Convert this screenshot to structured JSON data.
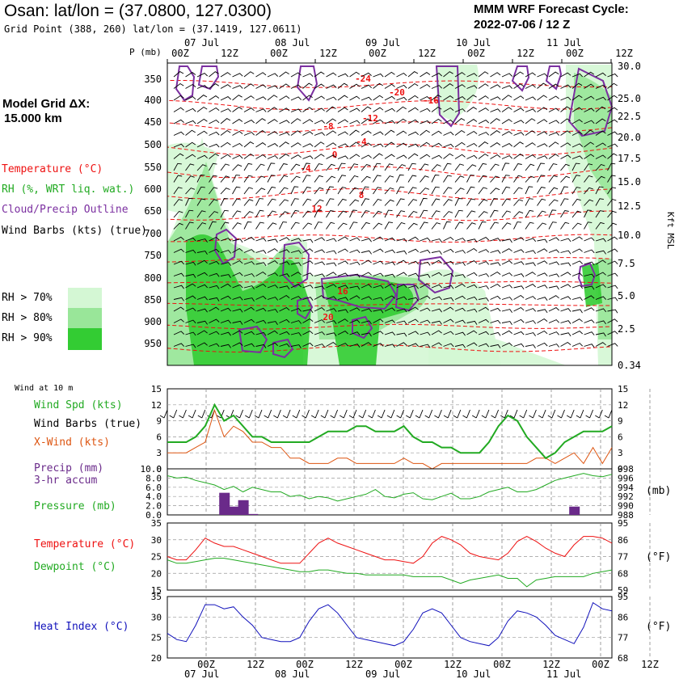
{
  "header": {
    "title": "Osan:  lat/lon = (37.0800, 127.0300)",
    "subtitle": "Grid Point (388, 260) lat/lon = (37.1419, 127.0611)",
    "cycle_line1": "MMM WRF Forecast Cycle:",
    "cycle_line2": "2022-07-06 / 12  Z",
    "model_grid_line1": "Model Grid ΔX:",
    "model_grid_line2": "15.000 km"
  },
  "legend": {
    "temperature": "Temperature (°C)",
    "rh": "RH (%, WRT liq. wat.)",
    "cloud": "Cloud/Precip Outline",
    "wind": "Wind Barbs (kts) (true)",
    "rh70": "RH > 70%",
    "rh80": "RH > 80%",
    "rh90": "RH > 90%"
  },
  "colors": {
    "temperature": "#ee1111",
    "rh70": "#d4f7d4",
    "rh80": "#99e699",
    "rh90": "#33cc33",
    "cloud": "#7b2fa0",
    "pressure": "#22aa22",
    "heat_index": "#1111bb",
    "xwind": "#dd5511",
    "precip": "#6a2a8a"
  },
  "time_axis": {
    "top_dates": [
      "07 Jul",
      "08 Jul",
      "09 Jul",
      "10 Jul",
      "11 Jul"
    ],
    "top_hours": [
      "00Z",
      "12Z",
      "00Z",
      "12Z",
      "00Z",
      "12Z",
      "00Z",
      "12Z",
      "00Z",
      "12Z"
    ],
    "bottom_hours": [
      "00Z",
      "12Z",
      "00Z",
      "12Z",
      "00Z",
      "12Z",
      "00Z",
      "12Z",
      "00Z",
      "12Z"
    ],
    "bottom_dates": [
      "07 Jul",
      "08 Jul",
      "09 Jul",
      "10 Jul",
      "11 Jul"
    ]
  },
  "panels": {
    "wind10m_title": "Wind at 10 m",
    "wind_spd_label": "Wind Spd (kts)",
    "wind_barbs_label": "Wind Barbs (true)",
    "xwind_label": "X-Wind (kts)",
    "precip_label_1": "Precip (mm)",
    "precip_label_2": "3-hr accum",
    "pressure_label": "Pressure (mb)",
    "pressure_unit": "(mb)",
    "temp_label": "Temperature (°C)",
    "dewpoint_label": "Dewpoint (°C)",
    "temp_unit_f": "(°F)",
    "heat_index_label": "Heat Index (°C)",
    "heat_unit_f": "(°F)"
  },
  "chart_data": [
    {
      "type": "heatmap",
      "name": "cross-section",
      "y_label": "P (mb)",
      "y_ticks": [
        "350",
        "400",
        "450",
        "500",
        "550",
        "600",
        "650",
        "700",
        "750",
        "800",
        "850",
        "900",
        "950"
      ],
      "right_label": "Kft MSL",
      "right_ticks": [
        "30.0",
        "25.0",
        "22.5",
        "20.0",
        "17.5",
        "15.0",
        "12.5",
        "10.0",
        "7.5",
        "5.0",
        "2.5",
        "0.34"
      ],
      "temperature_contour_labels": [
        "-24",
        "-20",
        "-16",
        "-12",
        "-8",
        "-4",
        "-4",
        "0",
        "4",
        "8",
        "12",
        "16",
        "20"
      ]
    },
    {
      "type": "line",
      "name": "wind10m",
      "y_ticks_left": [
        "15",
        "12",
        "9",
        "6",
        "3",
        "0"
      ],
      "y_ticks_right": [
        "15",
        "12",
        "9",
        "6",
        "3",
        "0"
      ],
      "ylim": [
        0,
        15
      ],
      "series": [
        {
          "name": "Wind Spd (kts)",
          "values": [
            5,
            5,
            5,
            6,
            8,
            12,
            9,
            10,
            8,
            6,
            6,
            5,
            5,
            5,
            5,
            5,
            6,
            7,
            7,
            7,
            8,
            8,
            7,
            7,
            7,
            8,
            6,
            5,
            5,
            4,
            4,
            3,
            3,
            3,
            5,
            8,
            10,
            9,
            6,
            4,
            2,
            3,
            5,
            6,
            7,
            7,
            7,
            8
          ]
        },
        {
          "name": "X-Wind (kts)",
          "values": [
            3,
            3,
            3,
            4,
            5,
            11,
            6,
            8,
            7,
            5,
            5,
            4,
            4,
            2,
            2,
            1,
            1,
            1,
            2,
            2,
            1,
            1,
            1,
            1,
            1,
            2,
            1,
            1,
            0,
            1,
            1,
            1,
            1,
            1,
            1,
            1,
            1,
            1,
            1,
            2,
            2,
            1,
            2,
            3,
            1,
            4,
            1,
            4
          ]
        }
      ]
    },
    {
      "type": "bar",
      "name": "precip",
      "y_ticks_left": [
        "10.0",
        "8.0",
        "6.0",
        "4.0",
        "2.0",
        "0.0"
      ],
      "ylim": [
        0,
        10
      ],
      "series": [
        {
          "name": "Precip (mm)",
          "bars": [
            {
              "i": 6,
              "v": 4.8
            },
            {
              "i": 7,
              "v": 1.8
            },
            {
              "i": 8,
              "v": 3.2
            },
            {
              "i": 9,
              "v": 0.2
            },
            {
              "i": 43,
              "v": 1.8
            }
          ]
        }
      ]
    },
    {
      "type": "line",
      "name": "pressure",
      "y_ticks_right": [
        "998",
        "996",
        "994",
        "992",
        "990",
        "988"
      ],
      "ylim": [
        988,
        998
      ],
      "series": [
        {
          "name": "Pressure (mb)",
          "values": [
            996.5,
            996,
            996.2,
            995.5,
            995,
            994.5,
            993.5,
            994.2,
            993,
            994,
            993.5,
            993,
            993,
            992,
            992.3,
            991.5,
            992,
            991.7,
            991,
            991.5,
            992,
            992.5,
            993.5,
            992,
            991.7,
            992.5,
            992.8,
            991.5,
            991.3,
            992,
            992.7,
            991.5,
            991.5,
            992,
            993,
            993.5,
            994,
            993,
            993,
            993.5,
            994.5,
            995.5,
            996,
            996.5,
            997,
            996.5,
            996.3,
            996.8
          ]
        }
      ]
    },
    {
      "type": "line",
      "name": "temperature",
      "y_ticks_left": [
        "35",
        "30",
        "25",
        "20",
        "15"
      ],
      "y_ticks_right": [
        "95",
        "86",
        "77",
        "68",
        "59"
      ],
      "ylim": [
        15,
        35
      ],
      "series": [
        {
          "name": "Temperature (°C)",
          "values": [
            25,
            24,
            24,
            27,
            30.5,
            29,
            28,
            28,
            27,
            26,
            25,
            24,
            23,
            23,
            23,
            26,
            29,
            30.5,
            29,
            28,
            27,
            26,
            25,
            24,
            24,
            23.5,
            23,
            25,
            29,
            31,
            30,
            28.5,
            26,
            25,
            24.5,
            24,
            26,
            29.5,
            31,
            29.5,
            27.5,
            26,
            25,
            28.5,
            31,
            31,
            30.5,
            29
          ]
        },
        {
          "name": "Dewpoint (°C)",
          "values": [
            24,
            23,
            23,
            23.5,
            24,
            24.5,
            24.5,
            24,
            23.5,
            23,
            22.5,
            22,
            21.5,
            21,
            20.5,
            20.5,
            21,
            21,
            20.5,
            20,
            20,
            19.5,
            19.5,
            19.5,
            19.5,
            19.5,
            19,
            19,
            19,
            19,
            18,
            17,
            18,
            18.5,
            19,
            19.5,
            18.5,
            18.5,
            16,
            18,
            18.5,
            19,
            19,
            19,
            19,
            20,
            20.5,
            21
          ]
        }
      ]
    },
    {
      "type": "line",
      "name": "heat_index",
      "y_ticks_left": [
        "35",
        "30",
        "25",
        "20"
      ],
      "y_ticks_right": [
        "95",
        "86",
        "77",
        "68"
      ],
      "ylim": [
        20,
        35
      ],
      "series": [
        {
          "name": "Heat Index (°C)",
          "values": [
            26,
            24.5,
            24,
            28,
            33,
            33,
            32,
            32.5,
            30,
            28,
            25,
            24.5,
            24,
            24,
            25,
            29,
            32,
            33,
            31,
            28,
            25,
            24.5,
            24,
            23.5,
            23,
            24,
            27,
            31,
            32,
            31,
            28,
            25,
            24,
            23.5,
            23,
            25,
            29,
            31.5,
            31,
            30,
            28,
            25.5,
            24.5,
            23.5,
            27.5,
            33.5,
            32,
            31.5
          ]
        }
      ]
    }
  ]
}
